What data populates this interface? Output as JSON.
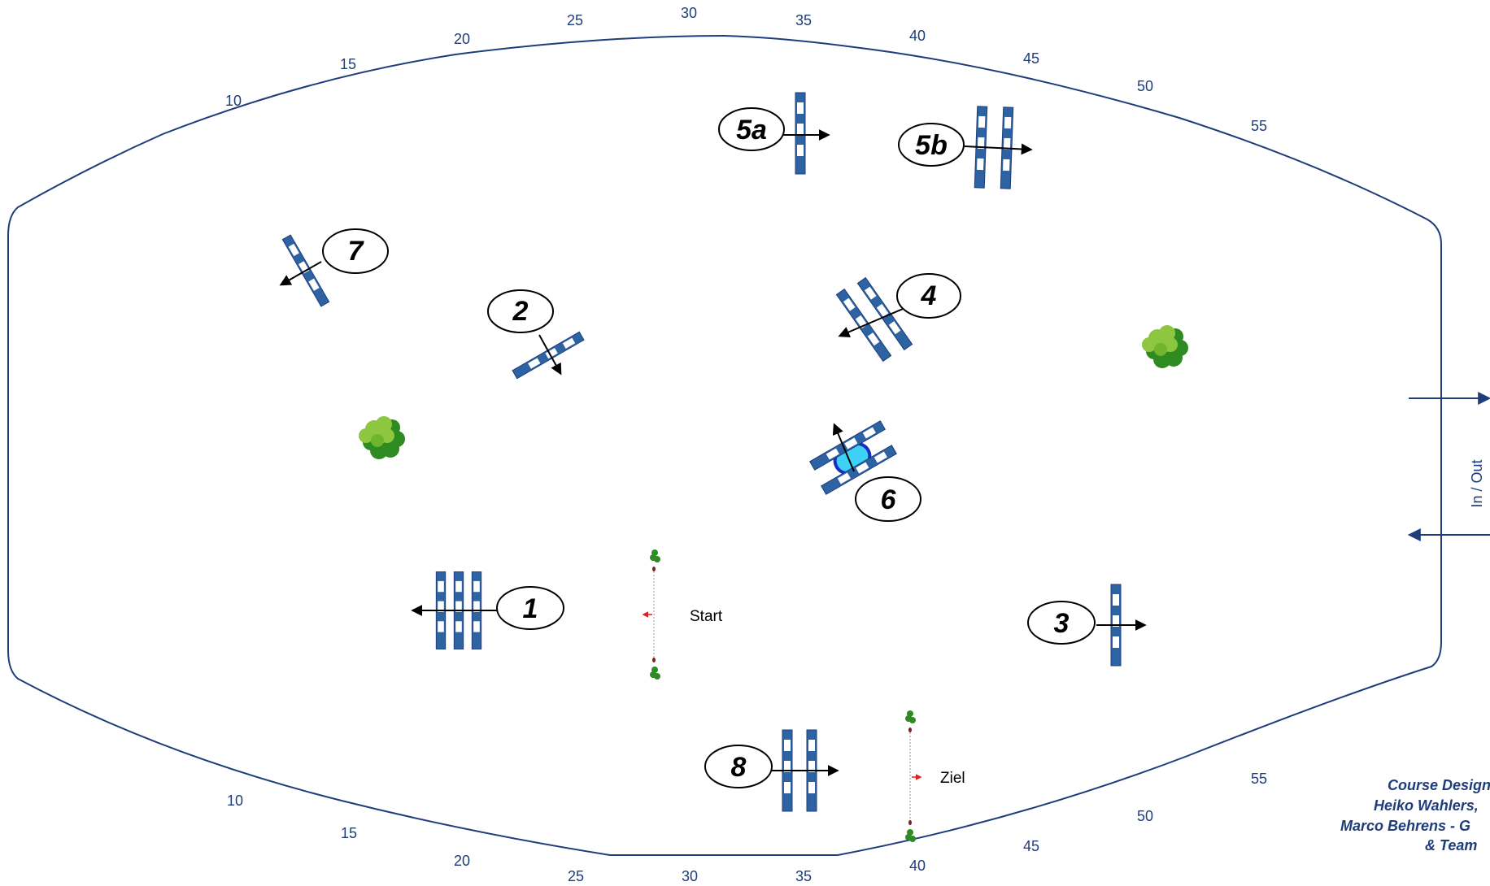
{
  "scale_top": [
    "10",
    "15",
    "20",
    "25",
    "30",
    "35",
    "40",
    "45",
    "50",
    "55"
  ],
  "scale_bottom": [
    "10",
    "15",
    "20",
    "25",
    "30",
    "35",
    "40",
    "45",
    "50",
    "55"
  ],
  "obstacles": [
    {
      "label": "1",
      "type": "triple-vertical",
      "direction": "left"
    },
    {
      "label": "2",
      "type": "single-rotated",
      "direction": "down"
    },
    {
      "label": "3",
      "type": "single-vertical",
      "direction": "right"
    },
    {
      "label": "4",
      "type": "double-rotated",
      "direction": "left"
    },
    {
      "label": "5a",
      "type": "single-vertical",
      "direction": "right"
    },
    {
      "label": "5b",
      "type": "double-vertical",
      "direction": "right"
    },
    {
      "label": "6",
      "type": "water-oxer",
      "direction": "up"
    },
    {
      "label": "7",
      "type": "single-rotated",
      "direction": "left"
    },
    {
      "label": "8",
      "type": "double-vertical",
      "direction": "right"
    }
  ],
  "start_label": "Start",
  "finish_label": "Ziel",
  "entrance_label": "In / Out",
  "credits": [
    "Course Design:",
    "Heiko Wahlers,",
    "Marco Behrens - G",
    "& Team"
  ],
  "colors": {
    "arena_line": "#1f3d7a",
    "pole_blue": "#2d62a3",
    "tree_dark": "#2e8b22",
    "tree_light": "#8dc63f",
    "water": "#3fd0f5",
    "flag_arrow": "#e02020"
  }
}
